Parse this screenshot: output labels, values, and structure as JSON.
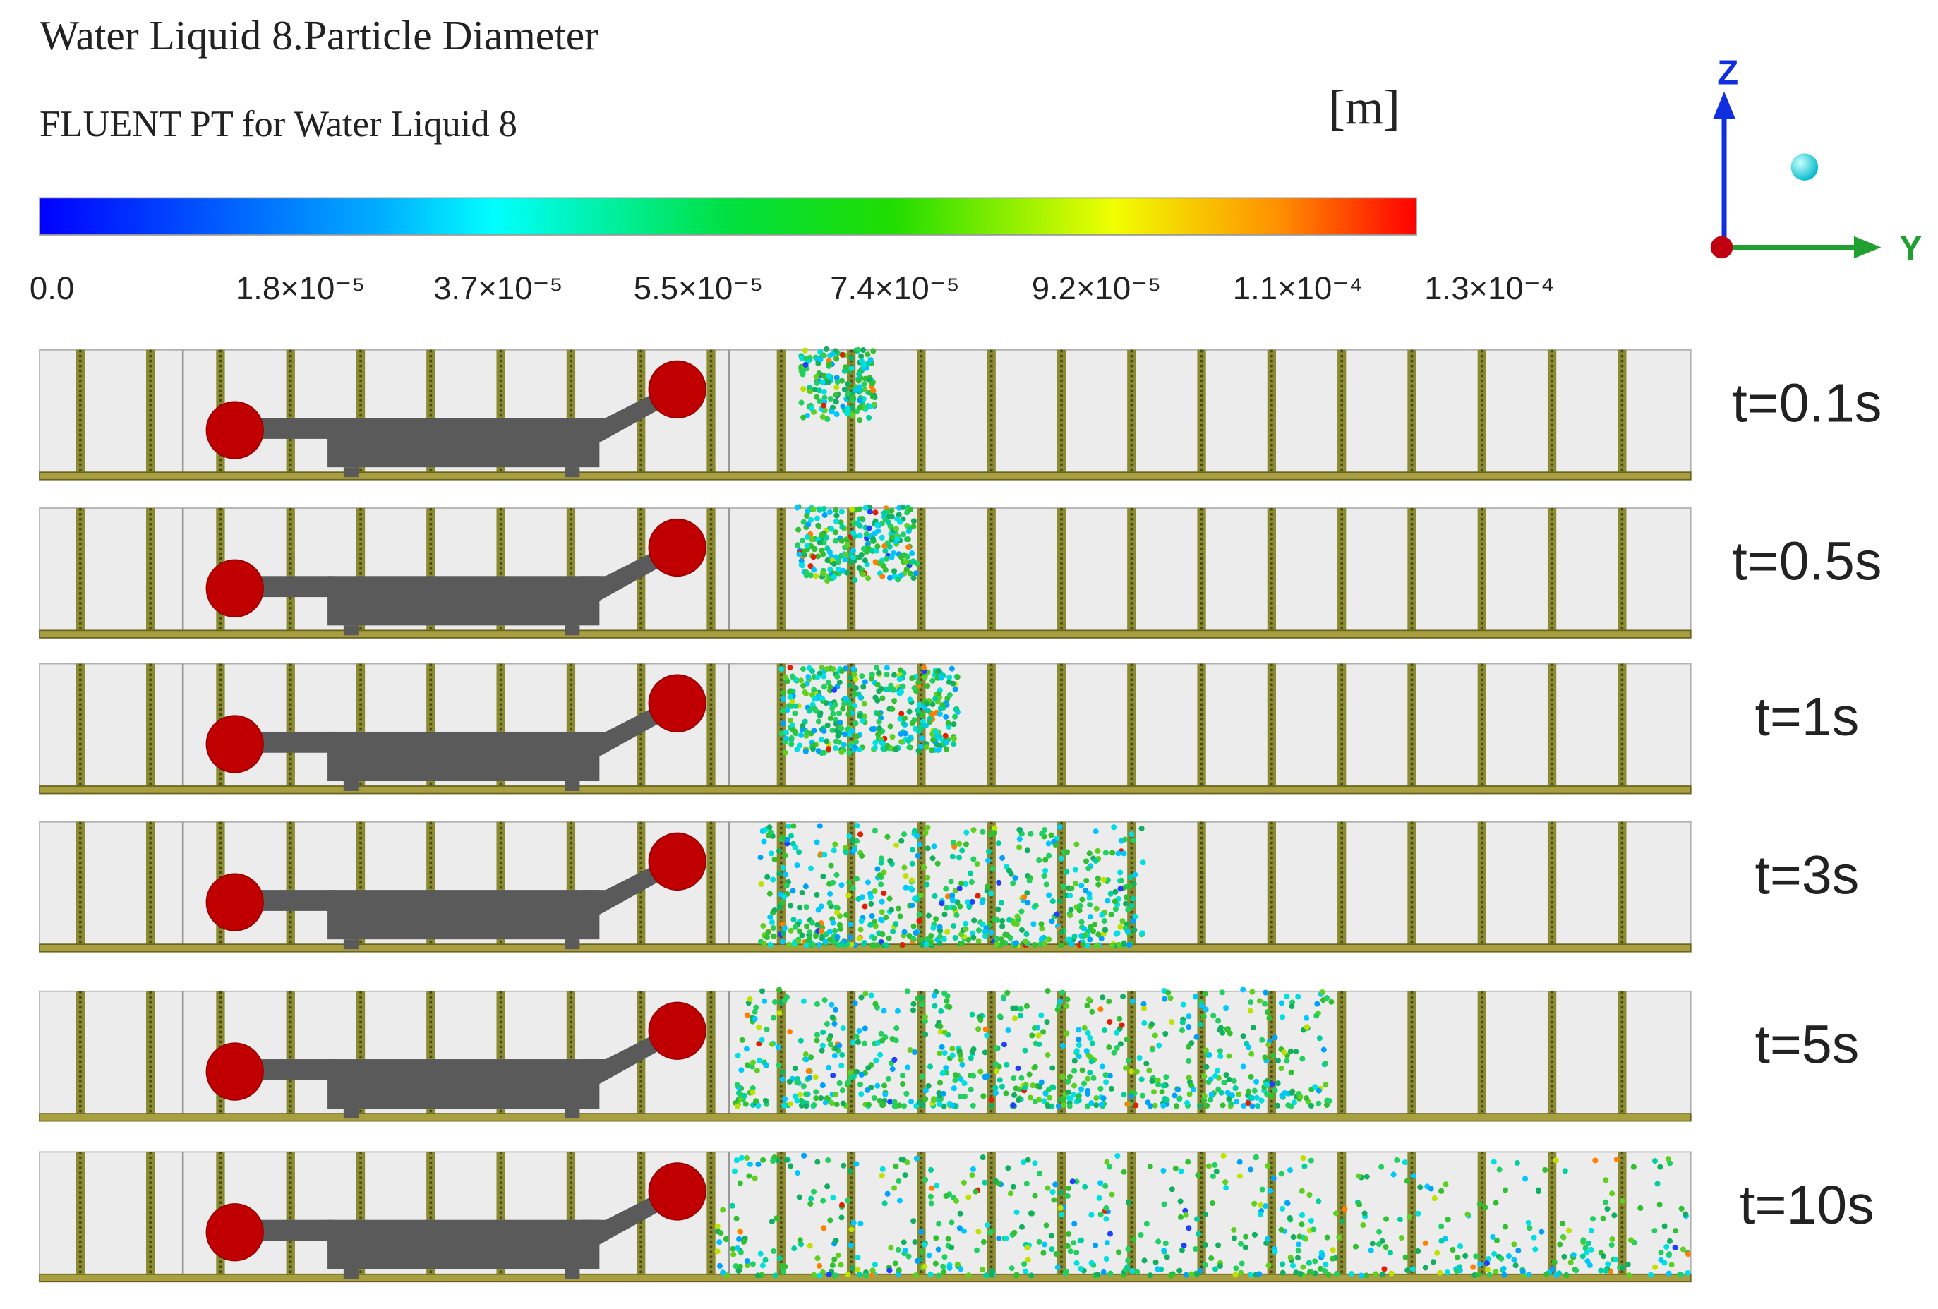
{
  "header": {
    "title": "Water Liquid 8.Particle Diameter",
    "subtitle": "FLUENT PT for Water Liquid 8",
    "unit": "[m]"
  },
  "colorbar": {
    "ticks": [
      "0.0",
      "1.8×10⁻⁵",
      "3.7×10⁻⁵",
      "5.5×10⁻⁵",
      "7.4×10⁻⁵",
      "9.2×10⁻⁵",
      "1.1×10⁻⁴",
      "1.3×10⁻⁴"
    ]
  },
  "axes": {
    "z": "Z",
    "y": "Y"
  },
  "panels": [
    {
      "time": "t=0.1s"
    },
    {
      "time": "t=0.5s"
    },
    {
      "time": "t=1s"
    },
    {
      "time": "t=3s"
    },
    {
      "time": "t=5s"
    },
    {
      "time": "t=10s"
    }
  ]
}
